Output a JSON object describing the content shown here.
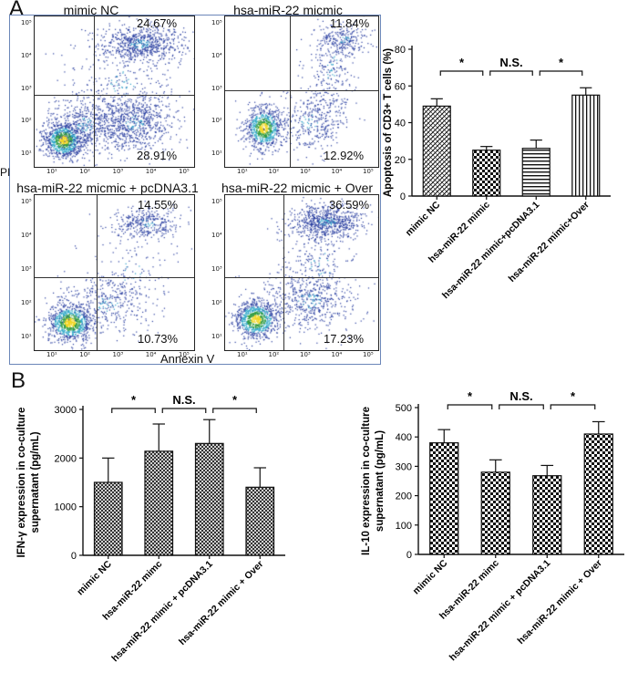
{
  "panel_a_letter": "A",
  "panel_b_letter": "B",
  "flow": {
    "y_axis_label": "PI",
    "x_axis_label": "Annexin V",
    "tick_labels": [
      "10¹",
      "10²",
      "10³",
      "10⁴",
      "10⁵"
    ],
    "plots": [
      {
        "title": "mimic NC",
        "upper_right": "24.67%",
        "lower_right": "28.91%"
      },
      {
        "title": "hsa-miR-22 micmic",
        "upper_right": "11.84%",
        "lower_right": "12.92%"
      },
      {
        "title": "hsa-miR-22 micmic + pcDNA3.1",
        "upper_right": "14.55%",
        "lower_right": "10.73%"
      },
      {
        "title": "hsa-miR-22 micmic + Over",
        "upper_right": "36.59%",
        "lower_right": "17.23%"
      }
    ]
  },
  "chart_data": [
    {
      "type": "bar",
      "categories": [
        "mimic NC",
        "hsa-miR-22 mimic",
        "hsa-miR-22 mimic+pcDNA3.1",
        "hsa-miR-22 mimic+Over"
      ],
      "values": [
        49,
        25,
        26,
        55
      ],
      "errors": [
        4,
        2,
        4.5,
        4
      ],
      "patterns": [
        "diag",
        "checker",
        "hlines",
        "vlines"
      ],
      "ylabel": "Apoptosis of CD3+ T cells (%)",
      "ylim": [
        0,
        80
      ],
      "yticks": [
        0,
        20,
        40,
        60,
        80
      ],
      "significance": [
        "*",
        "N.S.",
        "*"
      ]
    },
    {
      "type": "bar",
      "categories": [
        "mimic NC",
        "hsa-miR-22 mimc",
        "hsa-miR-22 mimic + pcDNA3.1",
        "hsa-miR-22 mimic + Over"
      ],
      "values": [
        1500,
        2140,
        2300,
        1400
      ],
      "errors": [
        500,
        560,
        490,
        400
      ],
      "patterns": [
        "crosshatch",
        "crosshatch",
        "crosshatch",
        "crosshatch"
      ],
      "ylabel_lines": [
        "IFN-γ  expression in co-culture",
        "supernatant (pg/mL)"
      ],
      "ylim": [
        0,
        3000
      ],
      "yticks": [
        0,
        1000,
        2000,
        3000
      ],
      "significance": [
        "*",
        "N.S.",
        "*"
      ]
    },
    {
      "type": "bar",
      "categories": [
        "mimic NC",
        "hsa-miR-22 mimc",
        "hsa-miR-22 mimic + pcDNA3.1",
        "hsa-miR-22 mimic + Over"
      ],
      "values": [
        380,
        280,
        268,
        410
      ],
      "errors": [
        45,
        42,
        35,
        42
      ],
      "patterns": [
        "checker",
        "checker",
        "checker",
        "checker"
      ],
      "ylabel_lines": [
        "IL-10 expression in co-culture",
        "supernatant (pg/mL)"
      ],
      "ylim": [
        0,
        500
      ],
      "yticks": [
        0,
        100,
        200,
        300,
        400,
        500
      ],
      "significance": [
        "*",
        "N.S.",
        "*"
      ]
    }
  ]
}
